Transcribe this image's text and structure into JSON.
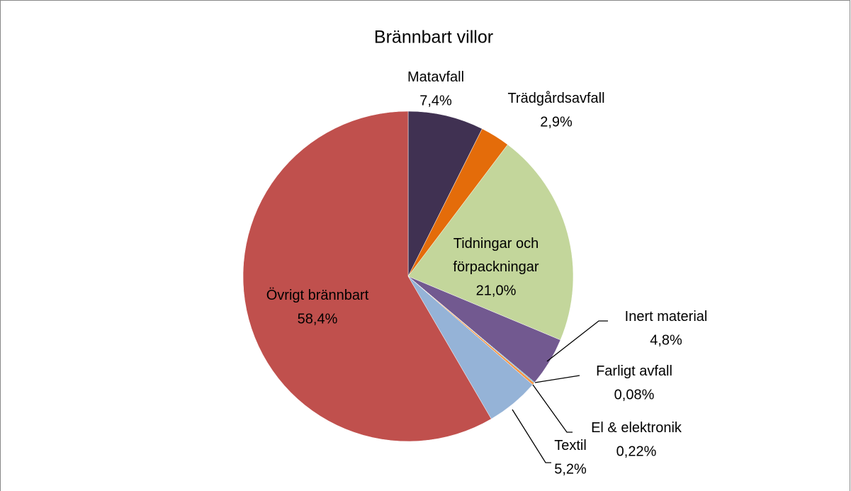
{
  "chart_data": {
    "type": "pie",
    "title": "Brännbart villor",
    "categories": [
      "Matavfall",
      "Trädgårdsavfall",
      "Tidningar och förpackningar",
      "Inert material",
      "Farligt avfall",
      "El & elektronik",
      "Textil",
      "Övrigt brännbart"
    ],
    "values": [
      7.4,
      2.9,
      21.0,
      4.8,
      0.08,
      0.22,
      5.2,
      58.4
    ],
    "value_labels": [
      "7,4%",
      "2,9%",
      "21,0%",
      "4,8%",
      "0,08%",
      "0,22%",
      "5,2%",
      "58,4%"
    ],
    "colors": [
      "#403152",
      "#e46c0a",
      "#c3d69b",
      "#725990",
      "#4bacc6",
      "#f79646",
      "#95b3d7",
      "#c0504d"
    ]
  }
}
